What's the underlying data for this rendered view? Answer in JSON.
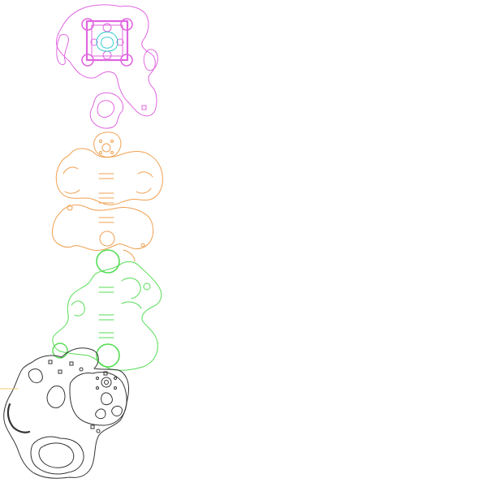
{
  "map": {
    "background": "#ffffff",
    "regions": [
      {
        "id": "castle",
        "color": "#e066e0",
        "accent": "#33cccc"
      },
      {
        "id": "caverns-upper",
        "color": "#f0a050"
      },
      {
        "id": "caverns-lower",
        "color": "#55dd55"
      },
      {
        "id": "ruins",
        "color": "#333333"
      },
      {
        "id": "edge-marker",
        "color": "#f2c96b"
      }
    ]
  }
}
